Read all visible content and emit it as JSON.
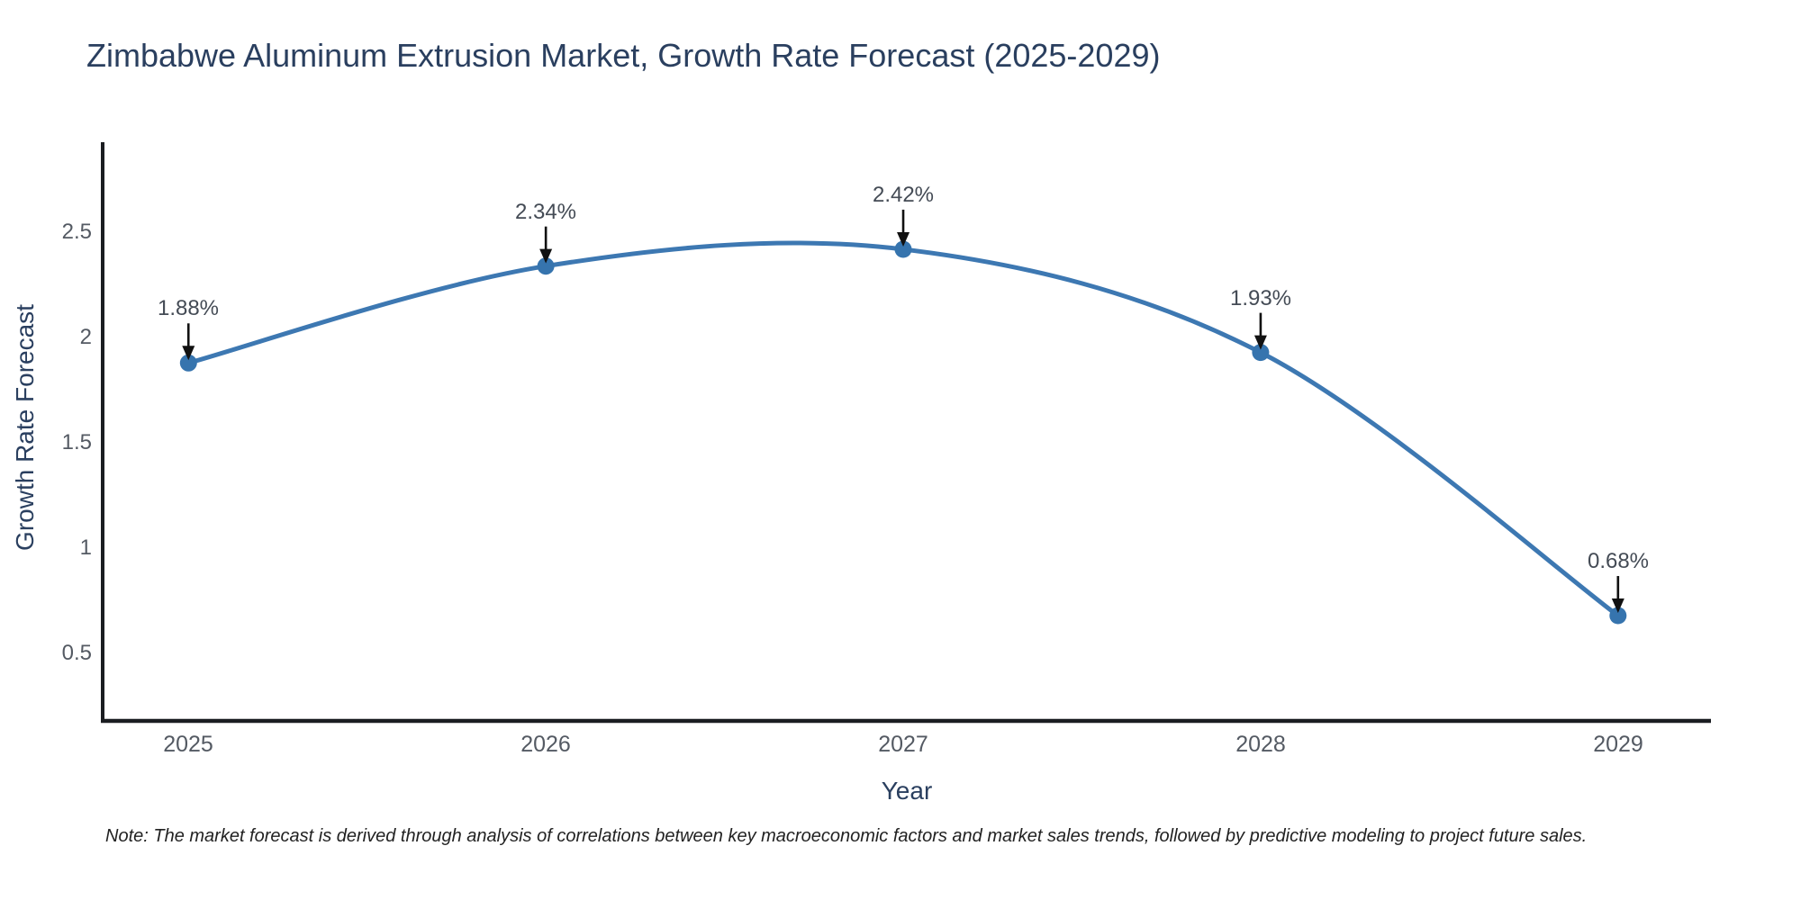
{
  "chart_data": {
    "type": "line",
    "title": "Zimbabwe Aluminum Extrusion Market, Growth Rate Forecast (2025-2029)",
    "xlabel": "Year",
    "ylabel": "Growth Rate Forecast",
    "x": [
      2025,
      2026,
      2027,
      2028,
      2029
    ],
    "series": [
      {
        "name": "Growth Rate Forecast",
        "values": [
          1.88,
          2.34,
          2.42,
          1.93,
          0.68
        ]
      }
    ],
    "point_labels": [
      "1.88%",
      "2.34%",
      "2.42%",
      "1.93%",
      "0.68%"
    ],
    "x_tick_labels": [
      "2025",
      "2026",
      "2027",
      "2028",
      "2029"
    ],
    "y_tick_values": [
      0.5,
      1,
      1.5,
      2,
      2.5
    ],
    "y_tick_labels": [
      "0.5",
      "1",
      "1.5",
      "2",
      "2.5"
    ],
    "xlim": [
      2024.76,
      2029.26
    ],
    "ylim": [
      0.18,
      2.92
    ],
    "line_shape": "spline",
    "grid": false,
    "legend": "none",
    "colors": {
      "line": "#3d78b2",
      "marker": "#3674ae",
      "annotation_arrow": "#111111",
      "axis_line": "#1a1d21",
      "title_text": "#2a3f5f",
      "tick_text": "#545a63",
      "annotation_text": "#444b55"
    }
  },
  "note": "Note: The market forecast is derived through analysis of correlations between key macroeconomic factors and market sales trends, followed by predictive modeling to project future sales."
}
